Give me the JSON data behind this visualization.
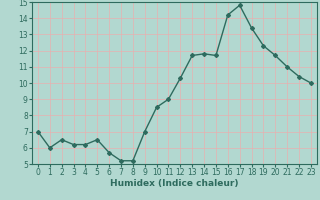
{
  "x": [
    0,
    1,
    2,
    3,
    4,
    5,
    6,
    7,
    8,
    9,
    10,
    11,
    12,
    13,
    14,
    15,
    16,
    17,
    18,
    19,
    20,
    21,
    22,
    23
  ],
  "y": [
    7,
    6,
    6.5,
    6.2,
    6.2,
    6.5,
    5.7,
    5.2,
    5.2,
    7,
    8.5,
    9,
    10.3,
    11.7,
    11.8,
    11.7,
    14.2,
    14.8,
    13.4,
    12.3,
    11.7,
    11.0,
    10.4,
    10.0
  ],
  "line_color": "#2e6b5e",
  "bg_color": "#b2d8d0",
  "grid_color": "#e8b0b0",
  "xlim": [
    -0.5,
    23.5
  ],
  "ylim": [
    5,
    15
  ],
  "yticks": [
    5,
    6,
    7,
    8,
    9,
    10,
    11,
    12,
    13,
    14,
    15
  ],
  "xticks": [
    0,
    1,
    2,
    3,
    4,
    5,
    6,
    7,
    8,
    9,
    10,
    11,
    12,
    13,
    14,
    15,
    16,
    17,
    18,
    19,
    20,
    21,
    22,
    23
  ],
  "xtick_labels": [
    "0",
    "1",
    "2",
    "3",
    "4",
    "5",
    "6",
    "7",
    "8",
    "9",
    "10",
    "11",
    "12",
    "13",
    "14",
    "15",
    "16",
    "17",
    "18",
    "19",
    "20",
    "21",
    "22",
    "23"
  ],
  "xlabel": "Humidex (Indice chaleur)",
  "marker": "D",
  "marker_size": 2,
  "line_width": 1.0,
  "tick_fontsize": 5.5,
  "xlabel_fontsize": 6.5
}
